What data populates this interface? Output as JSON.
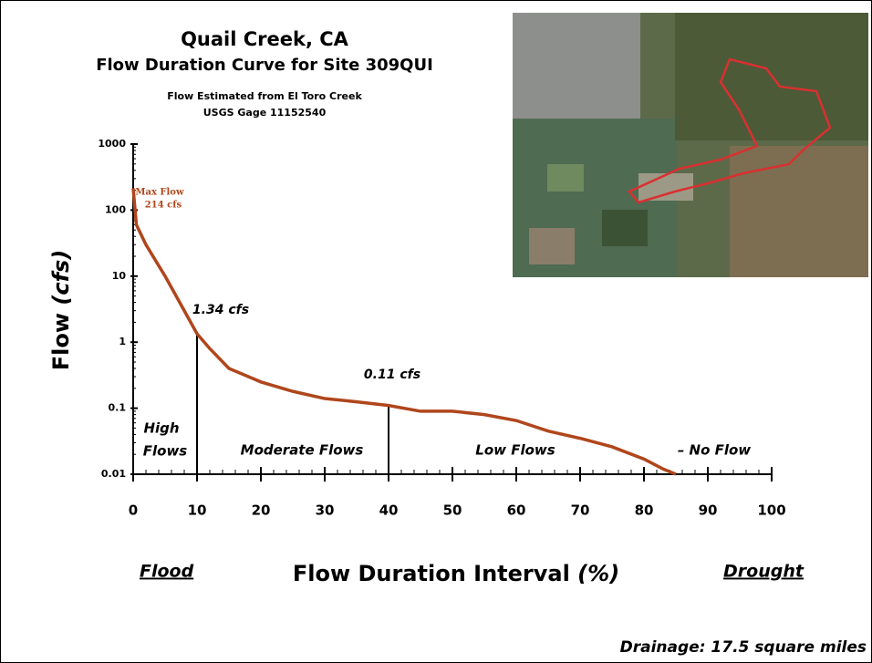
{
  "chart_data": {
    "type": "line",
    "title": "Quail Creek, CA",
    "subtitle": "Flow Duration Curve for Site 309QUI",
    "notes": [
      "Flow Estimated from El Toro Creek",
      "USGS Gage 11152540"
    ],
    "y_label": "Flow",
    "y_unit": "(cfs)",
    "x_label": "Flow Duration Interval",
    "x_unit": "(%)",
    "x_left_label": "Flood",
    "x_right_label": "Drought",
    "footer": "Drainage: 17.5 square miles",
    "log_y": true,
    "xlim": [
      0,
      100
    ],
    "xticks": [
      0,
      10,
      20,
      30,
      40,
      50,
      60,
      70,
      80,
      90,
      100
    ],
    "ylim": [
      0.01,
      1000
    ],
    "yticks": [
      0.01,
      0.1,
      1,
      10,
      100,
      1000
    ],
    "series": [
      {
        "name": "Flow",
        "color": "#b0461c",
        "x": [
          0,
          0.5,
          2,
          5,
          8,
          10,
          12,
          15,
          20,
          25,
          30,
          35,
          40,
          45,
          50,
          55,
          60,
          65,
          70,
          75,
          80,
          83,
          85
        ],
        "values": [
          214,
          60,
          30,
          10,
          3,
          1.34,
          0.8,
          0.4,
          0.25,
          0.18,
          0.14,
          0.125,
          0.11,
          0.09,
          0.09,
          0.08,
          0.065,
          0.045,
          0.035,
          0.026,
          0.017,
          0.012,
          0.01
        ]
      }
    ],
    "max_flow": {
      "label": "Max Flow",
      "value_label": "214 cfs"
    },
    "markers": [
      {
        "x": 10,
        "value": 1.34,
        "label": "1.34 cfs"
      },
      {
        "x": 40,
        "value": 0.11,
        "label": "0.11 cfs"
      }
    ],
    "regions": [
      [
        "High",
        "Flows"
      ],
      "Moderate Flows",
      "Low Flows",
      "– No Flow"
    ]
  }
}
